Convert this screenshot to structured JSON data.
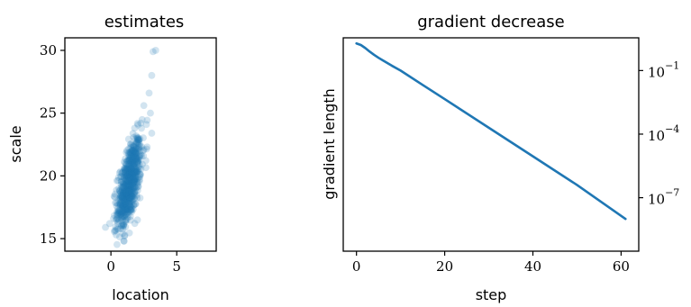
{
  "chart_data": [
    {
      "type": "scatter",
      "title": "estimates",
      "xlabel": "location",
      "ylabel": "scale",
      "xlim": [
        -3.5,
        8
      ],
      "ylim": [
        14,
        31
      ],
      "xticks": [
        0,
        5
      ],
      "yticks": [
        15,
        20,
        25,
        30
      ],
      "color": "#1f77b4",
      "alpha": 0.2,
      "grid": false,
      "highlights": [
        {
          "x": 3.4,
          "y": 30.0
        },
        {
          "x": 3.2,
          "y": 29.9
        },
        {
          "x": 3.1,
          "y": 28.0
        },
        {
          "x": 2.9,
          "y": 26.6
        },
        {
          "x": 2.5,
          "y": 25.6
        },
        {
          "x": 3.0,
          "y": 25.0
        },
        {
          "x": 3.1,
          "y": 23.4
        },
        {
          "x": 2.7,
          "y": 24.1
        },
        {
          "x": 0.2,
          "y": 16.6
        },
        {
          "x": 0.4,
          "y": 15.3
        },
        {
          "x": 1.0,
          "y": 14.8
        },
        {
          "x": -0.1,
          "y": 16.2
        }
      ],
      "cloud": {
        "n": 700,
        "x_mean": 1.4,
        "x_sd": 0.45,
        "y_mean": 19.4,
        "y_sd": 2.0,
        "y_per_x": 2.3
      }
    },
    {
      "type": "line",
      "title": "gradient decrease",
      "xlabel": "step",
      "ylabel": "gradient length",
      "yscale": "log",
      "yaxis_side": "right",
      "xlim": [
        -3,
        64
      ],
      "ylim": [
        3e-10,
        3.5
      ],
      "xticks": [
        0,
        20,
        40,
        60
      ],
      "yticks": [
        0.1,
        0.0001,
        1e-07
      ],
      "ytick_labels": [
        {
          "base": "10",
          "exp": "−1"
        },
        {
          "base": "10",
          "exp": "−4"
        },
        {
          "base": "10",
          "exp": "−7"
        }
      ],
      "color": "#1f77b4",
      "grid": false,
      "series": [
        {
          "x": [
            0,
            1,
            2,
            3,
            4,
            5,
            6,
            8,
            10,
            15,
            20,
            30,
            40,
            50,
            61
          ],
          "y": [
            1.9,
            1.6,
            1.15,
            0.78,
            0.55,
            0.4,
            0.3,
            0.17,
            0.1,
            0.021,
            0.0045,
            0.0002,
            9e-06,
            4e-07,
            1e-08
          ]
        }
      ]
    }
  ]
}
